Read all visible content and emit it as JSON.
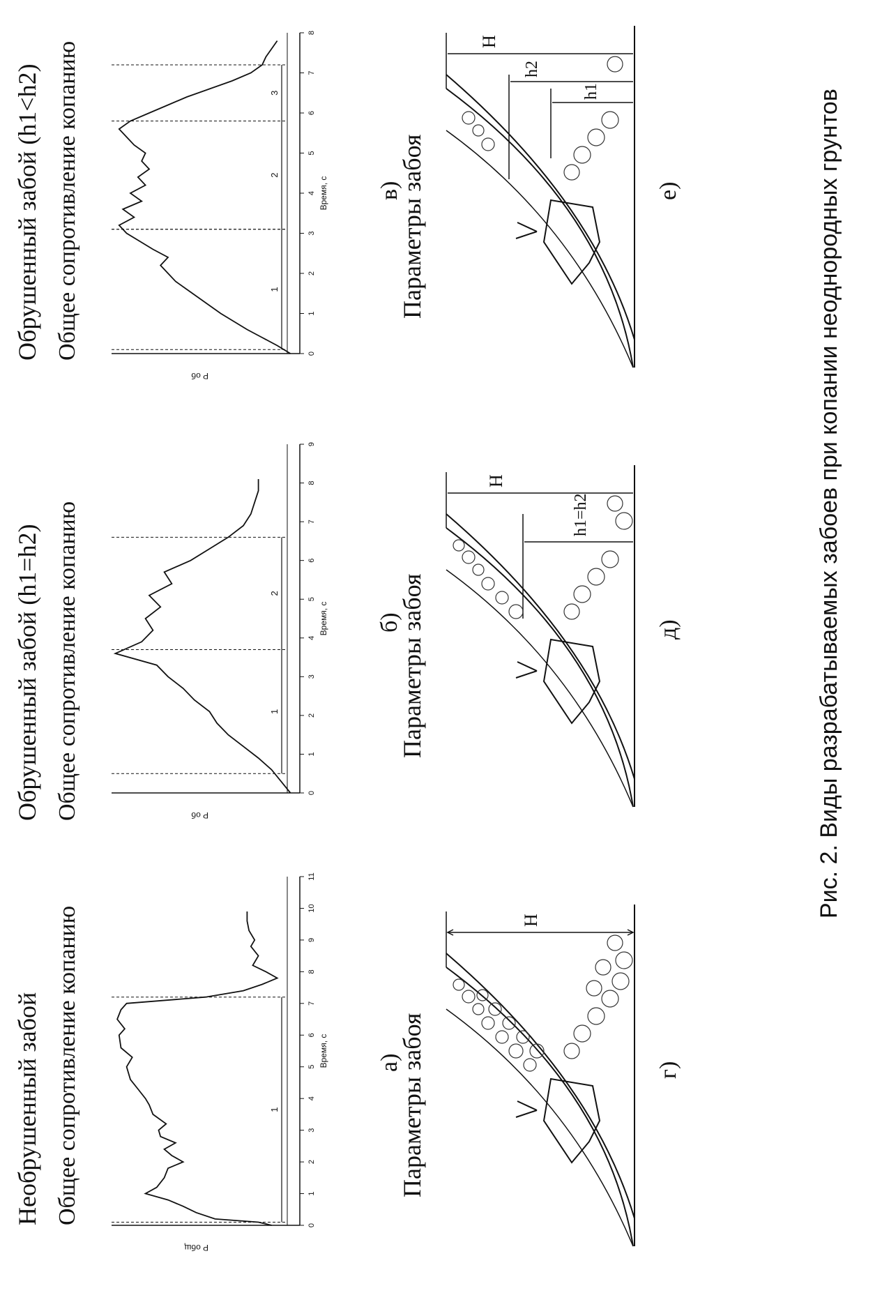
{
  "figure": {
    "caption": "Рис. 2.  Виды разрабатываемых забоев при копании неоднородных грунтов",
    "columns": [
      {
        "heading": "Необрушенный забой",
        "subheading": "Общее сопротивление копанию",
        "chart_label": "а)",
        "face_heading": "Параметры забоя",
        "face_label": "г)"
      },
      {
        "heading": "Обрушенный забой (h1=h2)",
        "subheading": "Общее сопротивление копанию",
        "chart_label": "б)",
        "face_heading": "Параметры забоя",
        "face_label": "д)"
      },
      {
        "heading": "Обрушенный забой (h1<h2)",
        "subheading": "Общее сопротивление копанию",
        "chart_label": "в)",
        "face_heading": "Параметры забоя",
        "face_label": "е)"
      }
    ],
    "faces": [
      {
        "labels": [
          "H"
        ]
      },
      {
        "labels": [
          "H",
          "h1=h2"
        ]
      },
      {
        "labels": [
          "H",
          "h2",
          "h1"
        ]
      }
    ]
  },
  "chart_data": [
    {
      "type": "line",
      "xlabel": "Время, с",
      "ylabel": "P общ",
      "xticks": [
        0,
        1,
        2,
        3,
        4,
        5,
        6,
        7,
        8,
        9,
        10,
        11
      ],
      "xlim": [
        0,
        11
      ],
      "x": [
        0.0,
        0.1,
        0.2,
        0.4,
        0.6,
        0.8,
        1.0,
        1.2,
        1.5,
        1.8,
        2.0,
        2.2,
        2.4,
        2.6,
        2.8,
        3.0,
        3.2,
        3.5,
        3.8,
        4.0,
        4.3,
        4.6,
        5.0,
        5.3,
        5.6,
        6.0,
        6.2,
        6.5,
        6.8,
        7.0,
        7.2,
        7.4,
        7.6,
        7.8,
        8.0,
        8.2,
        8.5,
        8.8,
        9.0,
        9.3,
        9.6,
        9.9
      ],
      "y": [
        0.15,
        0.22,
        0.45,
        0.55,
        0.62,
        0.7,
        0.82,
        0.76,
        0.72,
        0.7,
        0.62,
        0.68,
        0.72,
        0.66,
        0.74,
        0.75,
        0.71,
        0.78,
        0.8,
        0.82,
        0.86,
        0.9,
        0.92,
        0.89,
        0.95,
        0.96,
        0.93,
        0.97,
        0.95,
        0.92,
        0.5,
        0.3,
        0.2,
        0.12,
        0.18,
        0.25,
        0.22,
        0.26,
        0.24,
        0.27,
        0.28,
        0.28
      ],
      "phases": [
        {
          "label": "1",
          "from": 0.1,
          "to": 7.2
        }
      ]
    },
    {
      "type": "line",
      "xlabel": "Время, с",
      "ylabel": "P об",
      "xticks": [
        0,
        1,
        2,
        3,
        4,
        5,
        6,
        7,
        8,
        9
      ],
      "xlim": [
        0,
        9
      ],
      "x": [
        0.0,
        0.3,
        0.6,
        0.9,
        1.2,
        1.5,
        1.8,
        2.1,
        2.4,
        2.7,
        3.0,
        3.3,
        3.6,
        3.9,
        4.2,
        4.5,
        4.8,
        5.1,
        5.4,
        5.7,
        6.0,
        6.3,
        6.6,
        6.9,
        7.2,
        7.5,
        7.8,
        8.1
      ],
      "y": [
        0.05,
        0.1,
        0.15,
        0.22,
        0.3,
        0.38,
        0.44,
        0.48,
        0.56,
        0.62,
        0.7,
        0.76,
        0.98,
        0.84,
        0.78,
        0.82,
        0.74,
        0.8,
        0.68,
        0.72,
        0.58,
        0.48,
        0.38,
        0.3,
        0.26,
        0.24,
        0.22,
        0.22
      ],
      "phases": [
        {
          "label": "1",
          "from": 0.5,
          "to": 3.7
        },
        {
          "label": "2",
          "from": 3.7,
          "to": 6.6
        }
      ]
    },
    {
      "type": "line",
      "xlabel": "Время, с",
      "ylabel": "P об",
      "xticks": [
        0,
        1,
        2,
        3,
        4,
        5,
        6,
        7,
        8
      ],
      "xlim": [
        0,
        8
      ],
      "x": [
        0.0,
        0.2,
        0.4,
        0.6,
        0.8,
        1.0,
        1.2,
        1.4,
        1.6,
        1.8,
        2.0,
        2.2,
        2.4,
        2.6,
        2.8,
        3.0,
        3.2,
        3.4,
        3.6,
        3.8,
        4.0,
        4.2,
        4.4,
        4.6,
        4.8,
        5.0,
        5.2,
        5.4,
        5.6,
        5.8,
        6.0,
        6.2,
        6.4,
        6.6,
        6.8,
        7.0,
        7.2,
        7.4,
        7.6,
        7.8
      ],
      "y": [
        0.05,
        0.12,
        0.2,
        0.28,
        0.35,
        0.42,
        0.48,
        0.54,
        0.6,
        0.66,
        0.7,
        0.74,
        0.7,
        0.78,
        0.85,
        0.92,
        0.96,
        0.88,
        0.94,
        0.84,
        0.9,
        0.82,
        0.86,
        0.8,
        0.84,
        0.82,
        0.88,
        0.92,
        0.96,
        0.9,
        0.8,
        0.7,
        0.6,
        0.48,
        0.36,
        0.26,
        0.2,
        0.18,
        0.15,
        0.12
      ],
      "phases": [
        {
          "label": "1",
          "from": 0.1,
          "to": 3.1
        },
        {
          "label": "2",
          "from": 3.1,
          "to": 5.8
        },
        {
          "label": "3",
          "from": 5.8,
          "to": 7.2
        }
      ]
    }
  ]
}
